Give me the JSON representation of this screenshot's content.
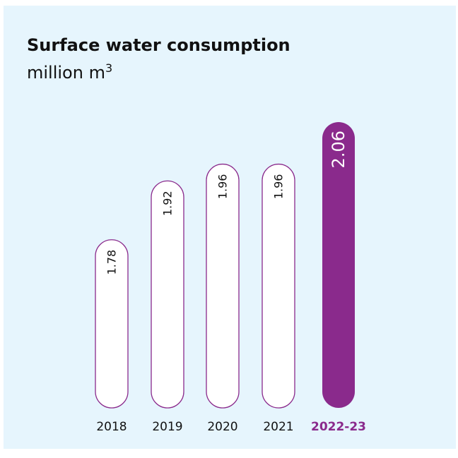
{
  "chart_data": {
    "type": "bar",
    "title": "Surface water consumption",
    "subtitle": "million m",
    "subtitle_superscript": "3",
    "categories": [
      "2018",
      "2019",
      "2020",
      "2021",
      "2022-23"
    ],
    "values": [
      1.78,
      1.92,
      1.96,
      1.96,
      2.06
    ],
    "value_labels": [
      "1.78",
      "1.92",
      "1.96",
      "1.96",
      "2.06"
    ],
    "highlight_index": 4,
    "orientation": "vertical",
    "value_label_rotation": "rotated-90",
    "grid": false,
    "legend": "none"
  },
  "colors": {
    "background": "#e6f5fd",
    "bar_fill": "#ffffff",
    "bar_outline": "#8a2a8c",
    "highlight_fill": "#8a2a8c",
    "highlight_text": "#ffffff",
    "text": "#111111",
    "highlight_tick_text": "#8a2a8c"
  }
}
